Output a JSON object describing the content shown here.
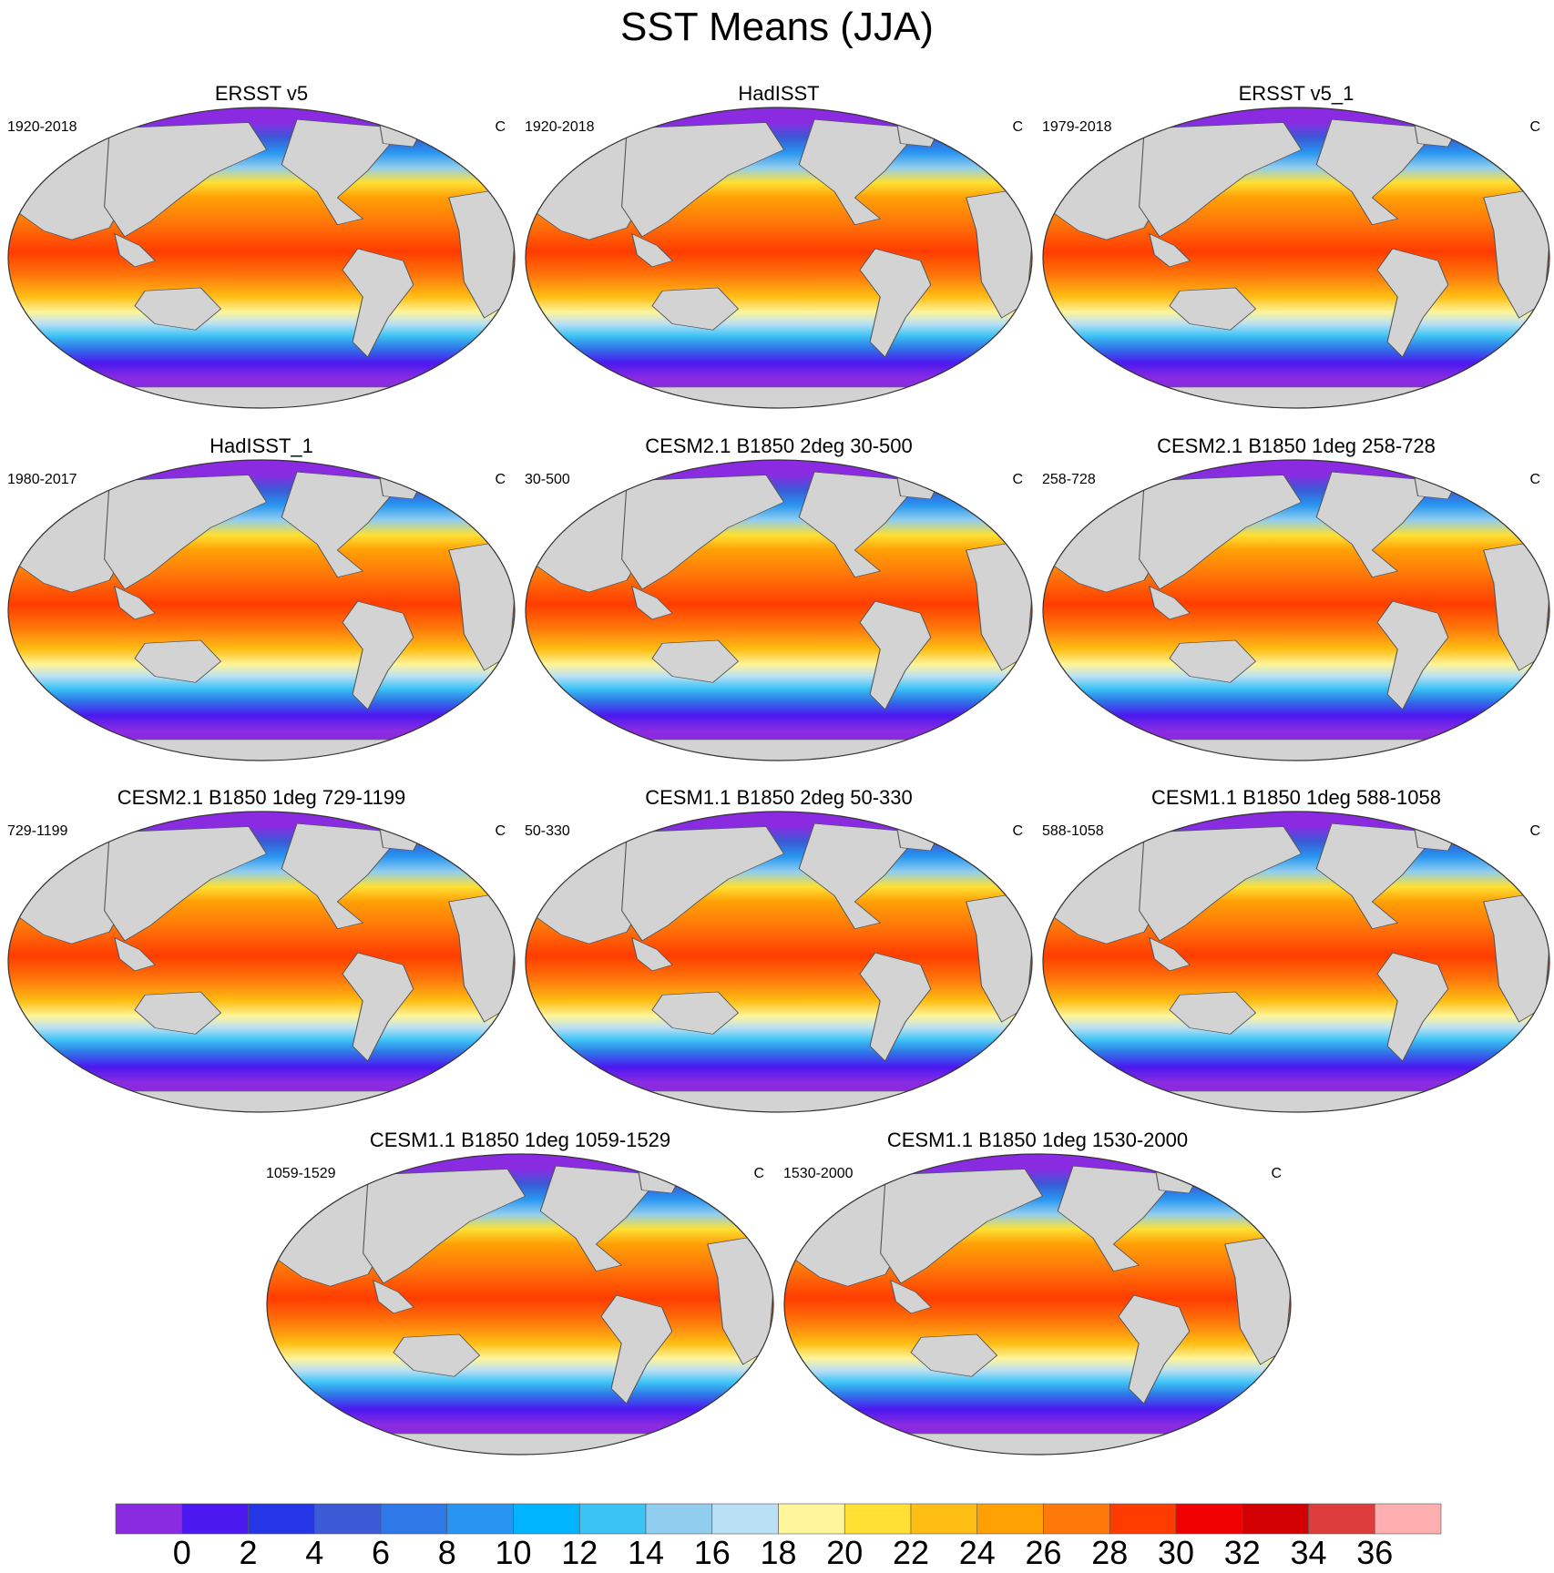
{
  "figure_title": "SST Means (JJA)",
  "units": "C",
  "colors": {
    "land": "#d3d3d3",
    "outline": "#555555",
    "missing": "#ffffff"
  },
  "panels": [
    {
      "title": "ERSST v5",
      "period": "1920-2018",
      "units": "C"
    },
    {
      "title": "HadISST",
      "period": "1920-2018",
      "units": "C"
    },
    {
      "title": "ERSST v5_1",
      "period": "1979-2018",
      "units": "C"
    },
    {
      "title": "HadISST_1",
      "period": "1980-2017",
      "units": "C"
    },
    {
      "title": "CESM2.1 B1850 2deg 30-500",
      "period": "30-500",
      "units": "C"
    },
    {
      "title": "CESM2.1 B1850 1deg 258-728",
      "period": "258-728",
      "units": "C"
    },
    {
      "title": "CESM2.1 B1850 1deg 729-1199",
      "period": "729-1199",
      "units": "C"
    },
    {
      "title": "CESM1.1 B1850 2deg 50-330",
      "period": "50-330",
      "units": "C"
    },
    {
      "title": "CESM1.1 B1850 1deg 588-1058",
      "period": "588-1058",
      "units": "C"
    },
    {
      "title": "CESM1.1 B1850 1deg 1059-1529",
      "period": "1059-1529",
      "units": "C"
    },
    {
      "title": "CESM1.1 B1850 1deg 1530-2000",
      "period": "1530-2000",
      "units": "C"
    }
  ],
  "colorbar": {
    "labels": [
      "0",
      "2",
      "4",
      "6",
      "8",
      "10",
      "12",
      "14",
      "16",
      "18",
      "20",
      "22",
      "24",
      "26",
      "28",
      "30",
      "32",
      "34",
      "36"
    ],
    "colors": [
      "#8a2be2",
      "#4b19f0",
      "#2436e6",
      "#3a5ad6",
      "#2f78e8",
      "#2896f0",
      "#00b4ff",
      "#3cc3f5",
      "#90cdef",
      "#bae0f5",
      "#fff59a",
      "#ffe033",
      "#ffbe14",
      "#ffa005",
      "#ff780a",
      "#ff3c00",
      "#f00000",
      "#d20000",
      "#dc3c3c",
      "#ffafaf"
    ]
  }
}
